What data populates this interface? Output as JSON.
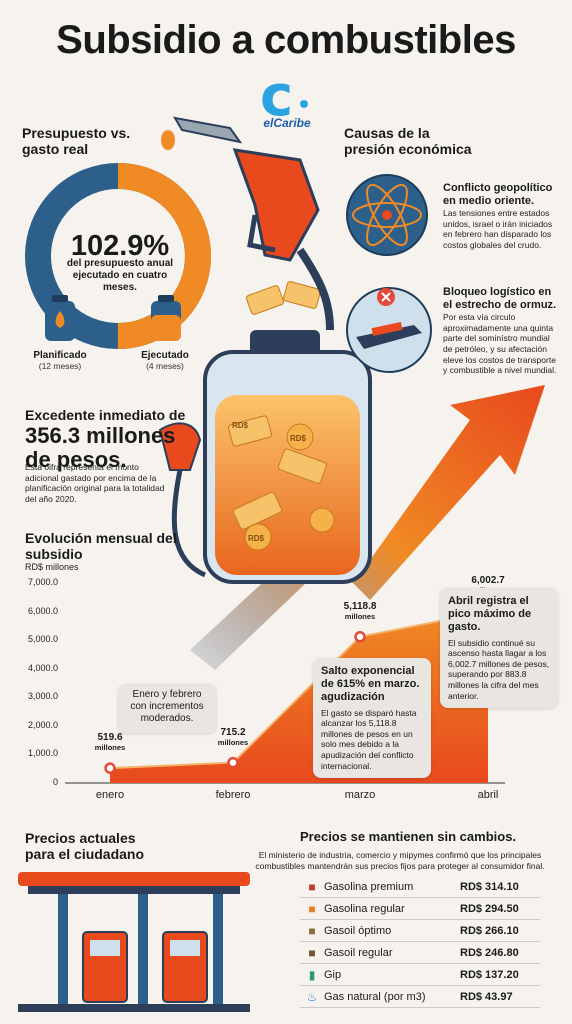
{
  "title": "Subsidio a combustibles",
  "logo": {
    "letter": "c",
    "brand": "elCaribe"
  },
  "budget": {
    "heading": "Presupuesto vs. gasto real",
    "percent": "102.9%",
    "percent_desc": "del presupuesto anual ejecutado en cuatro meses.",
    "planned_label": "Planificado",
    "planned_sub": "(12 meses)",
    "executed_label": "Ejecutado",
    "executed_sub": "(4 meses)",
    "colors": {
      "executed": "#f08a24",
      "remaining": "#2c5f8a"
    }
  },
  "causes": {
    "heading": "Causas de la presión económica",
    "items": [
      {
        "icon": "globe-atom-icon",
        "title": "Conflicto geopolítico en medio oriente.",
        "desc": "Las tensiones entre estados unidos, israel o irán iniciados en febrero han disparado los costos globales del crudo."
      },
      {
        "icon": "tanker-ship-icon",
        "title": "Bloqueo logístico en el estrecho de ormuz.",
        "desc": "Por esta vía circulo aproximadamente una quinta parte del sominístro mundial de petróleo, y su afectación eleve los costos de transporte y combustible a nivel mundial."
      }
    ]
  },
  "excess": {
    "label": "Excedente inmediato de",
    "amount": "356.3 millones de pesos.",
    "desc": "Esta oifra representa el monto adicional gastado por encima de la planificación original para la totalidad del año 2020."
  },
  "illustration": {
    "bill_label": "RD$"
  },
  "chart_data": {
    "type": "area",
    "title": "Evolución mensual del subsidio",
    "ylabel": "RD$ millones",
    "categories": [
      "enero",
      "febrero",
      "marzo",
      "abril"
    ],
    "values": [
      519.6,
      715.2,
      5118.8,
      6002.7
    ],
    "value_labels": [
      "519.6",
      "715.2",
      "5,118.8",
      "6,002.7"
    ],
    "unit_label": "millones",
    "ylim": [
      0,
      7000
    ],
    "yticks": [
      "0",
      "1,000.0",
      "2,000.0",
      "3,000.0",
      "4,000.0",
      "5,000.0",
      "6,000.0",
      "7,000.0"
    ],
    "colors": {
      "area_top": "#f08a24",
      "area_bottom": "#e8491d",
      "point": "#e24a3b"
    }
  },
  "callouts": {
    "jan_feb": "Enero y febrero con incrementos moderados.",
    "march_title": "Salto exponencial de 615% en marzo. agudización",
    "march_desc": "El gasto se disparó hasta alcanzar los 5,118.8 millones de pesos en un solo mes debido a la apudización del conflicto internacional.",
    "april_title": "Abril registra el pico máximo de gasto.",
    "april_desc": "El subsidio continué su ascenso hasta llagar a los 6,002.7 millones de pesos, superando por 883.8 millones la cifra del mes anterior."
  },
  "prices": {
    "heading_left": "Precios actuales para el ciudadano",
    "heading_right": "Precios se mantienen sin cambios.",
    "desc": "El ministerio de industria, comercio y mipymes confirmó que los principales combustibles mantendrán sus precios fijos para proteger al consumidor final.",
    "rows": [
      {
        "icon": "fuel-can-icon",
        "name": "Gasolina premium",
        "price": "RD$ 314.10",
        "color": "#c0392b"
      },
      {
        "icon": "fuel-can-icon",
        "name": "Gasolina regular",
        "price": "RD$ 294.50",
        "color": "#e67e22"
      },
      {
        "icon": "fuel-can-icon",
        "name": "Gasoil óptimo",
        "price": "RD$ 266.10",
        "color": "#8e6e3b"
      },
      {
        "icon": "fuel-can-icon",
        "name": "Gasoil regular",
        "price": "RD$ 246.80",
        "color": "#6e5535"
      },
      {
        "icon": "gas-cylinder-icon",
        "name": "Gip",
        "price": "RD$ 137.20",
        "color": "#2c9a7a"
      },
      {
        "icon": "flame-icon",
        "name": "Gas natural (por m3)",
        "price": "RD$ 43.97",
        "color": "#2a7fd6"
      }
    ]
  }
}
